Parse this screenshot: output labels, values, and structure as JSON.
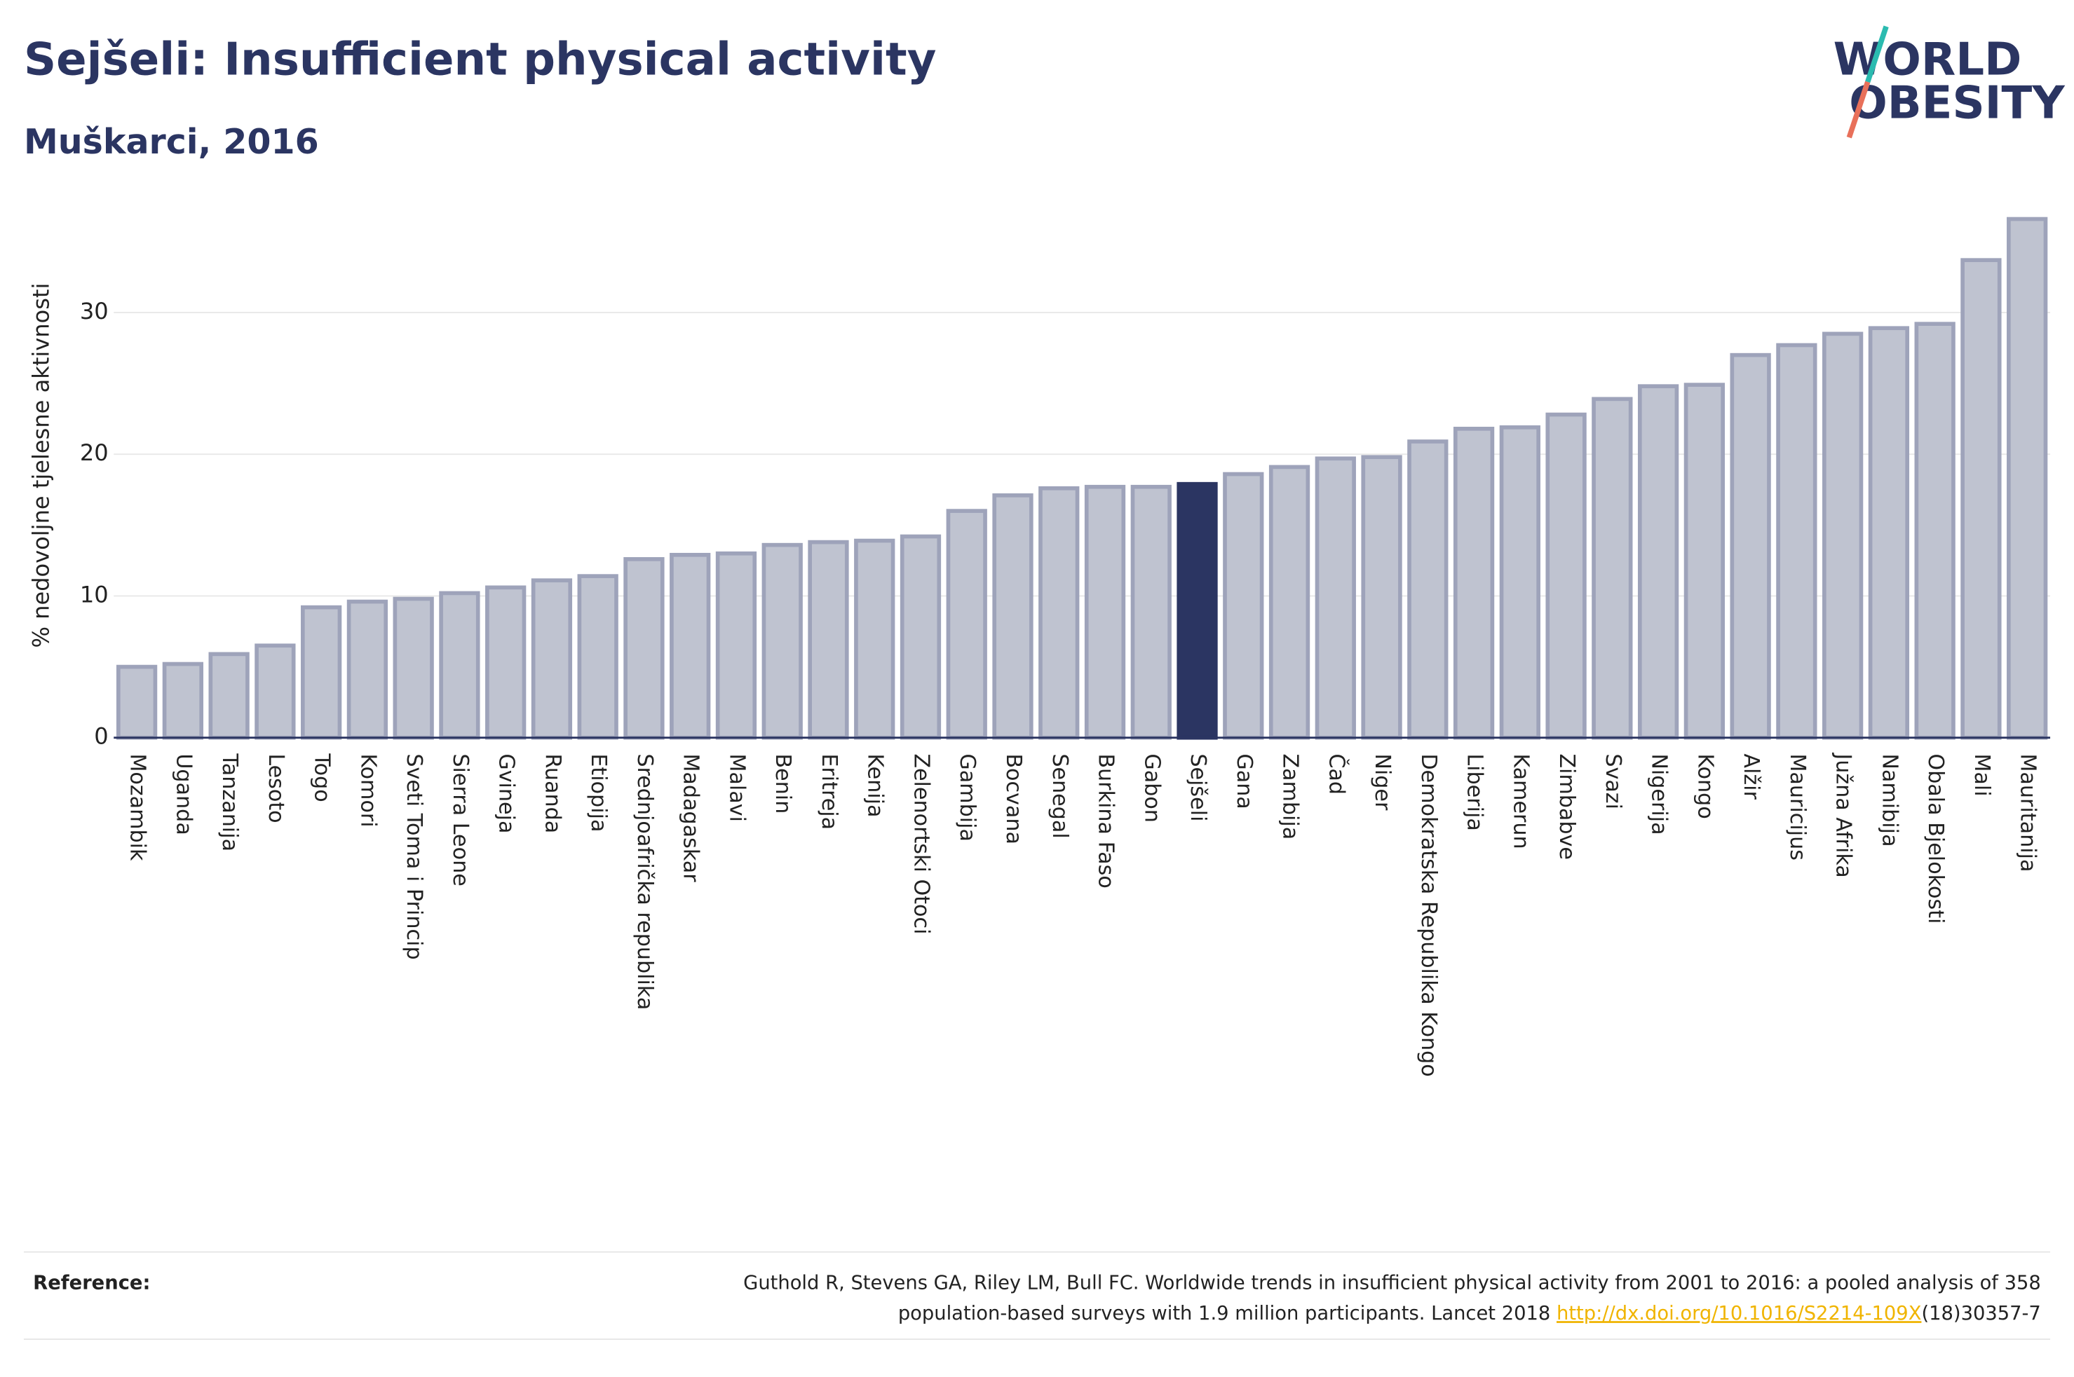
{
  "chart_data": {
    "type": "bar",
    "title": "Sejšeli: Insufficient physical activity",
    "subtitle": "Muškarci, 2016",
    "y_label": "% nedovoljne tjelesne aktivnosti",
    "categories": [
      "Mozambik",
      "Uganda",
      "Tanzanija",
      "Lesoto",
      "Togo",
      "Komori",
      "Sveti Toma i Princip",
      "Sierra Leone",
      "Gvineja",
      "Ruanda",
      "Etiopija",
      "Srednjoafrička republika",
      "Madagaskar",
      "Malavi",
      "Benin",
      "Eritreja",
      "Kenija",
      "Zelenortski Otoci",
      "Gambija",
      "Bocvana",
      "Senegal",
      "Burkina Faso",
      "Gabon",
      "Sejšeli",
      "Gana",
      "Zambija",
      "Čad",
      "Niger",
      "Demokratska Republika Kongo",
      "Liberija",
      "Kamerun",
      "Zimbabve",
      "Svazi",
      "Nigerija",
      "Kongo",
      "Alžir",
      "Mauricijus",
      "Južna Afrika",
      "Namibija",
      "Obala Bjelokosti",
      "Mali",
      "Mauritanija"
    ],
    "values": [
      5.0,
      5.2,
      5.9,
      6.5,
      9.2,
      9.6,
      9.8,
      10.2,
      10.6,
      11.1,
      11.4,
      12.6,
      12.9,
      13.0,
      13.6,
      13.8,
      13.9,
      14.2,
      16.0,
      17.1,
      17.6,
      17.7,
      17.7,
      17.9,
      18.6,
      19.1,
      19.7,
      19.8,
      20.9,
      21.8,
      21.9,
      22.8,
      23.9,
      24.8,
      24.9,
      27.0,
      27.7,
      28.5,
      28.9,
      29.2,
      33.7,
      36.6
    ],
    "color": "#bfc3d0",
    "highlight": {
      "category": "Sejšeli",
      "color": "#2b3562"
    },
    "ylim": [
      0,
      37.5
    ],
    "yticks": [
      0,
      10,
      20,
      30
    ],
    "grid": true,
    "logo": [
      "WORLD",
      "OBESITY"
    ],
    "reference": {
      "label": "Reference:",
      "line1": "Guthold R, Stevens GA, Riley LM, Bull FC. Worldwide trends in insufficient physical activity from 2001 to 2016: a pooled analysis of 358",
      "line2": "population-based surveys with 1.9 million participants. Lancet 2018 ",
      "link": "http://dx.doi.org/10.1016/S2214-109X",
      "tail": "(18)30357-7"
    }
  }
}
